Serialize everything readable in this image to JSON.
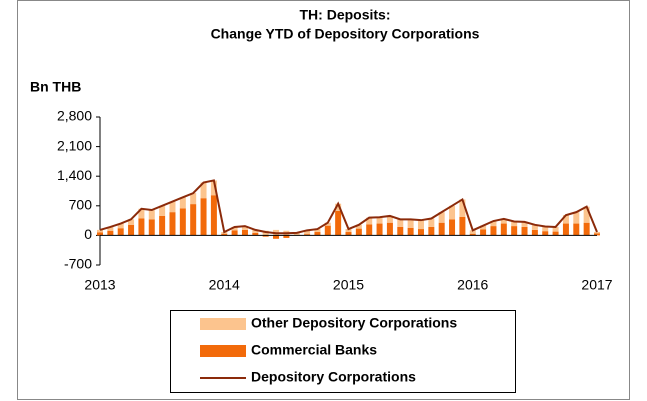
{
  "chart_data": {
    "type": "bar_line",
    "title": [
      "TH: Deposits:",
      "Change YTD of Depository Corporations"
    ],
    "y_axis_label": "Bn THB",
    "categories": [
      "2013",
      null,
      null,
      null,
      null,
      null,
      null,
      null,
      null,
      null,
      null,
      null,
      "2014",
      null,
      null,
      null,
      null,
      null,
      null,
      null,
      null,
      null,
      null,
      null,
      "2015",
      null,
      null,
      null,
      null,
      null,
      null,
      null,
      null,
      null,
      null,
      null,
      "2016",
      null,
      null,
      null,
      null,
      null,
      null,
      null,
      null,
      null,
      null,
      null,
      "2017"
    ],
    "ylim": [
      -700,
      2800
    ],
    "yticks": [
      -700,
      0,
      700,
      {
        "value": 1400,
        "label": "1,400"
      },
      {
        "value": 2100,
        "label": "2,100"
      },
      {
        "value": 2800,
        "label": "2,800"
      }
    ],
    "series": [
      {
        "name": "Other Depository Corporations",
        "kind": "bar",
        "color": "#fcc48e",
        "values": [
          60,
          90,
          110,
          130,
          230,
          220,
          240,
          250,
          260,
          260,
          370,
          350,
          40,
          80,
          90,
          70,
          110,
          130,
          110,
          60,
          90,
          70,
          70,
          170,
          70,
          90,
          160,
          150,
          160,
          180,
          200,
          210,
          200,
          250,
          320,
          410,
          80,
          90,
          120,
          110,
          110,
          120,
          120,
          110,
          110,
          200,
          270,
          380,
          30
        ]
      },
      {
        "name": "Commercial Banks",
        "kind": "bar",
        "color": "#f26a0a",
        "values": [
          70,
          110,
          170,
          250,
          400,
          380,
          460,
          550,
          640,
          740,
          880,
          950,
          40,
          120,
          130,
          60,
          -30,
          -80,
          -60,
          0,
          30,
          80,
          230,
          580,
          80,
          160,
          260,
          280,
          300,
          200,
          180,
          150,
          200,
          300,
          380,
          440,
          40,
          140,
          220,
          280,
          220,
          200,
          130,
          100,
          90,
          280,
          280,
          300,
          50
        ]
      },
      {
        "name": "Depository Corporations",
        "kind": "line",
        "color": "#8b2a0a",
        "values": [
          130,
          200,
          280,
          380,
          630,
          600,
          700,
          800,
          900,
          1000,
          1250,
          1300,
          80,
          200,
          220,
          130,
          80,
          50,
          50,
          60,
          120,
          150,
          300,
          750,
          150,
          250,
          420,
          430,
          460,
          380,
          380,
          360,
          400,
          550,
          700,
          850,
          120,
          230,
          340,
          390,
          330,
          320,
          250,
          210,
          200,
          480,
          550,
          680,
          80
        ]
      }
    ]
  }
}
